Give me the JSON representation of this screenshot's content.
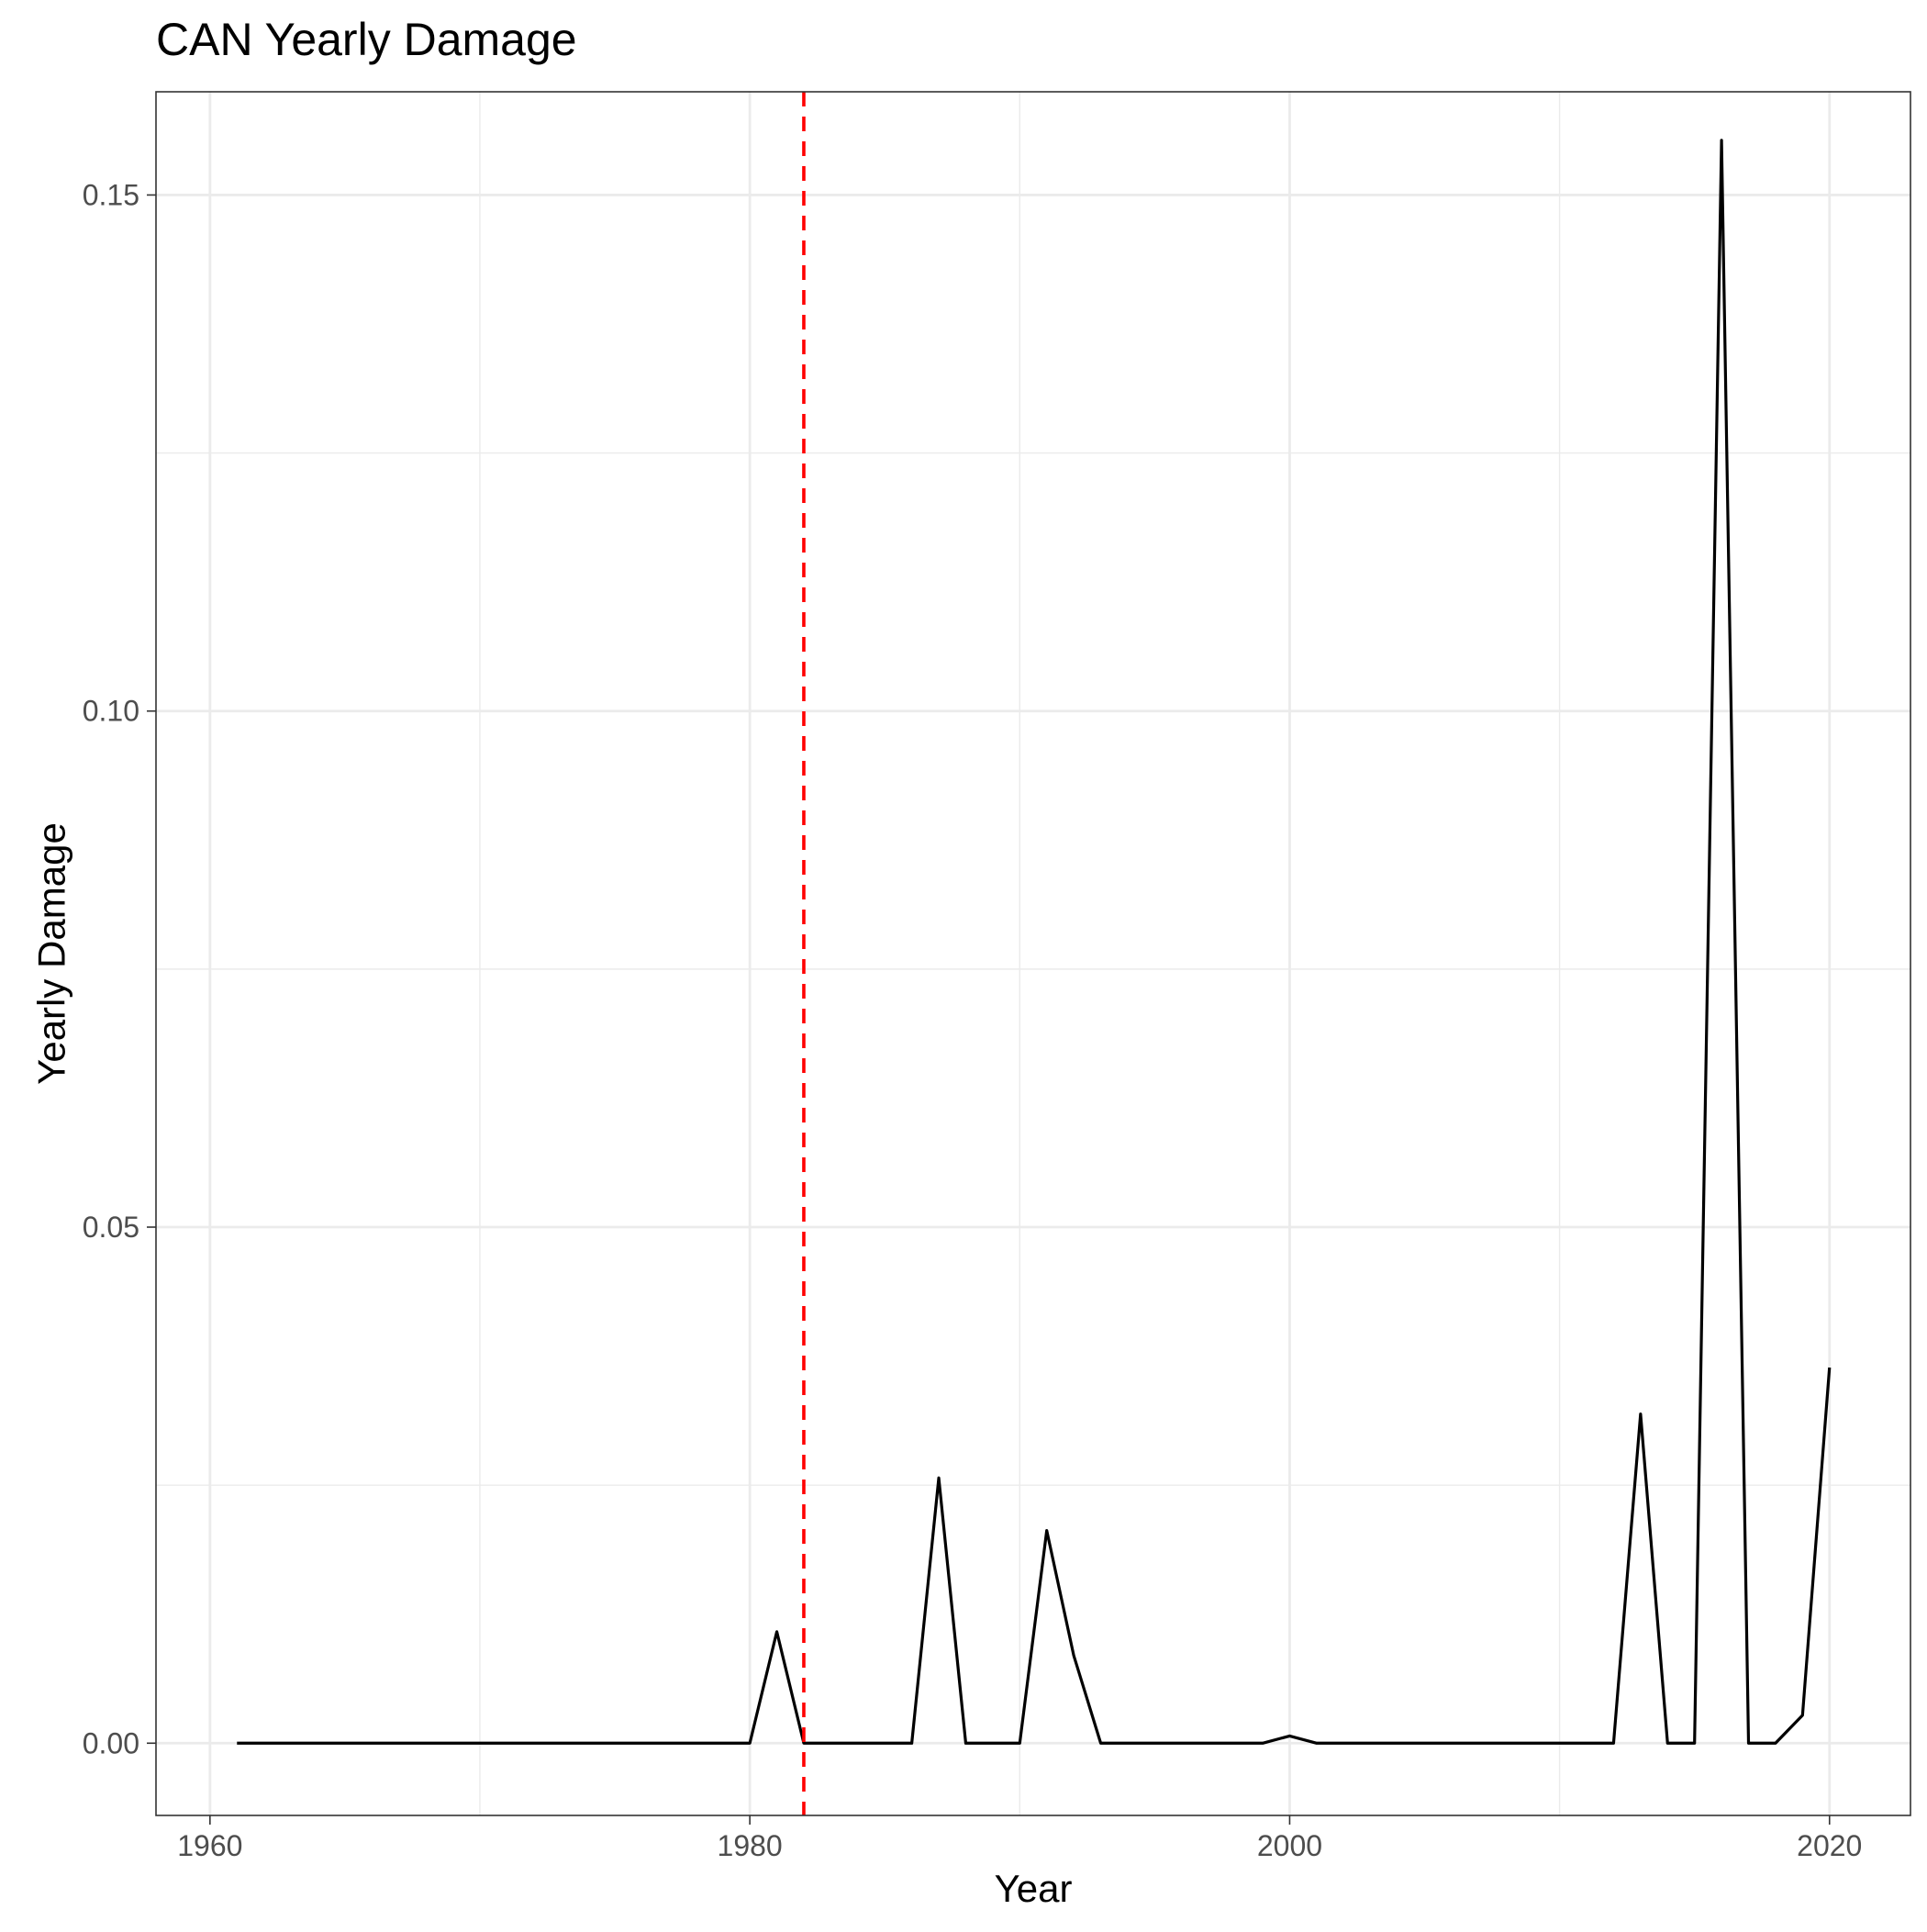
{
  "chart_data": {
    "type": "line",
    "title": "CAN Yearly Damage",
    "xlabel": "Year",
    "ylabel": "Yearly Damage",
    "xlim": [
      1958,
      2023
    ],
    "ylim": [
      -0.007,
      0.16
    ],
    "x_ticks": [
      1960,
      1980,
      2000,
      2020
    ],
    "x_tick_labels": [
      "1960",
      "1980",
      "2000",
      "2020"
    ],
    "y_ticks": [
      0.0,
      0.05,
      0.1,
      0.15
    ],
    "y_tick_labels": [
      "0.00",
      "0.05",
      "0.10",
      "0.15"
    ],
    "grid": true,
    "reference_line": {
      "orientation": "vertical",
      "x": 1982,
      "style": "dashed",
      "color": "#ff0000"
    },
    "series": [
      {
        "line_color": "#000000",
        "x": [
          1961,
          1962,
          1963,
          1964,
          1965,
          1966,
          1967,
          1968,
          1969,
          1970,
          1971,
          1972,
          1973,
          1974,
          1975,
          1976,
          1977,
          1978,
          1979,
          1980,
          1981,
          1982,
          1983,
          1984,
          1985,
          1986,
          1987,
          1988,
          1989,
          1990,
          1991,
          1992,
          1993,
          1994,
          1995,
          1996,
          1997,
          1998,
          1999,
          2000,
          2001,
          2002,
          2003,
          2004,
          2005,
          2006,
          2007,
          2008,
          2009,
          2010,
          2011,
          2012,
          2013,
          2014,
          2015,
          2016,
          2017,
          2018,
          2019,
          2020
        ],
        "y": [
          0,
          0,
          0,
          0,
          0,
          0,
          0,
          0,
          0,
          0,
          0,
          0,
          0,
          0,
          0,
          0,
          0,
          0,
          0,
          0,
          0.0108,
          0,
          0,
          0,
          0,
          0,
          0.0257,
          0,
          0,
          0,
          0.0206,
          0.0085,
          0,
          0,
          0,
          0,
          0,
          0,
          0,
          0.0007,
          0,
          0,
          0,
          0,
          0,
          0,
          0,
          0,
          0,
          0,
          0,
          0,
          0.0319,
          0,
          0,
          0.1553,
          0,
          0,
          0.0027,
          0.0364
        ]
      }
    ]
  }
}
